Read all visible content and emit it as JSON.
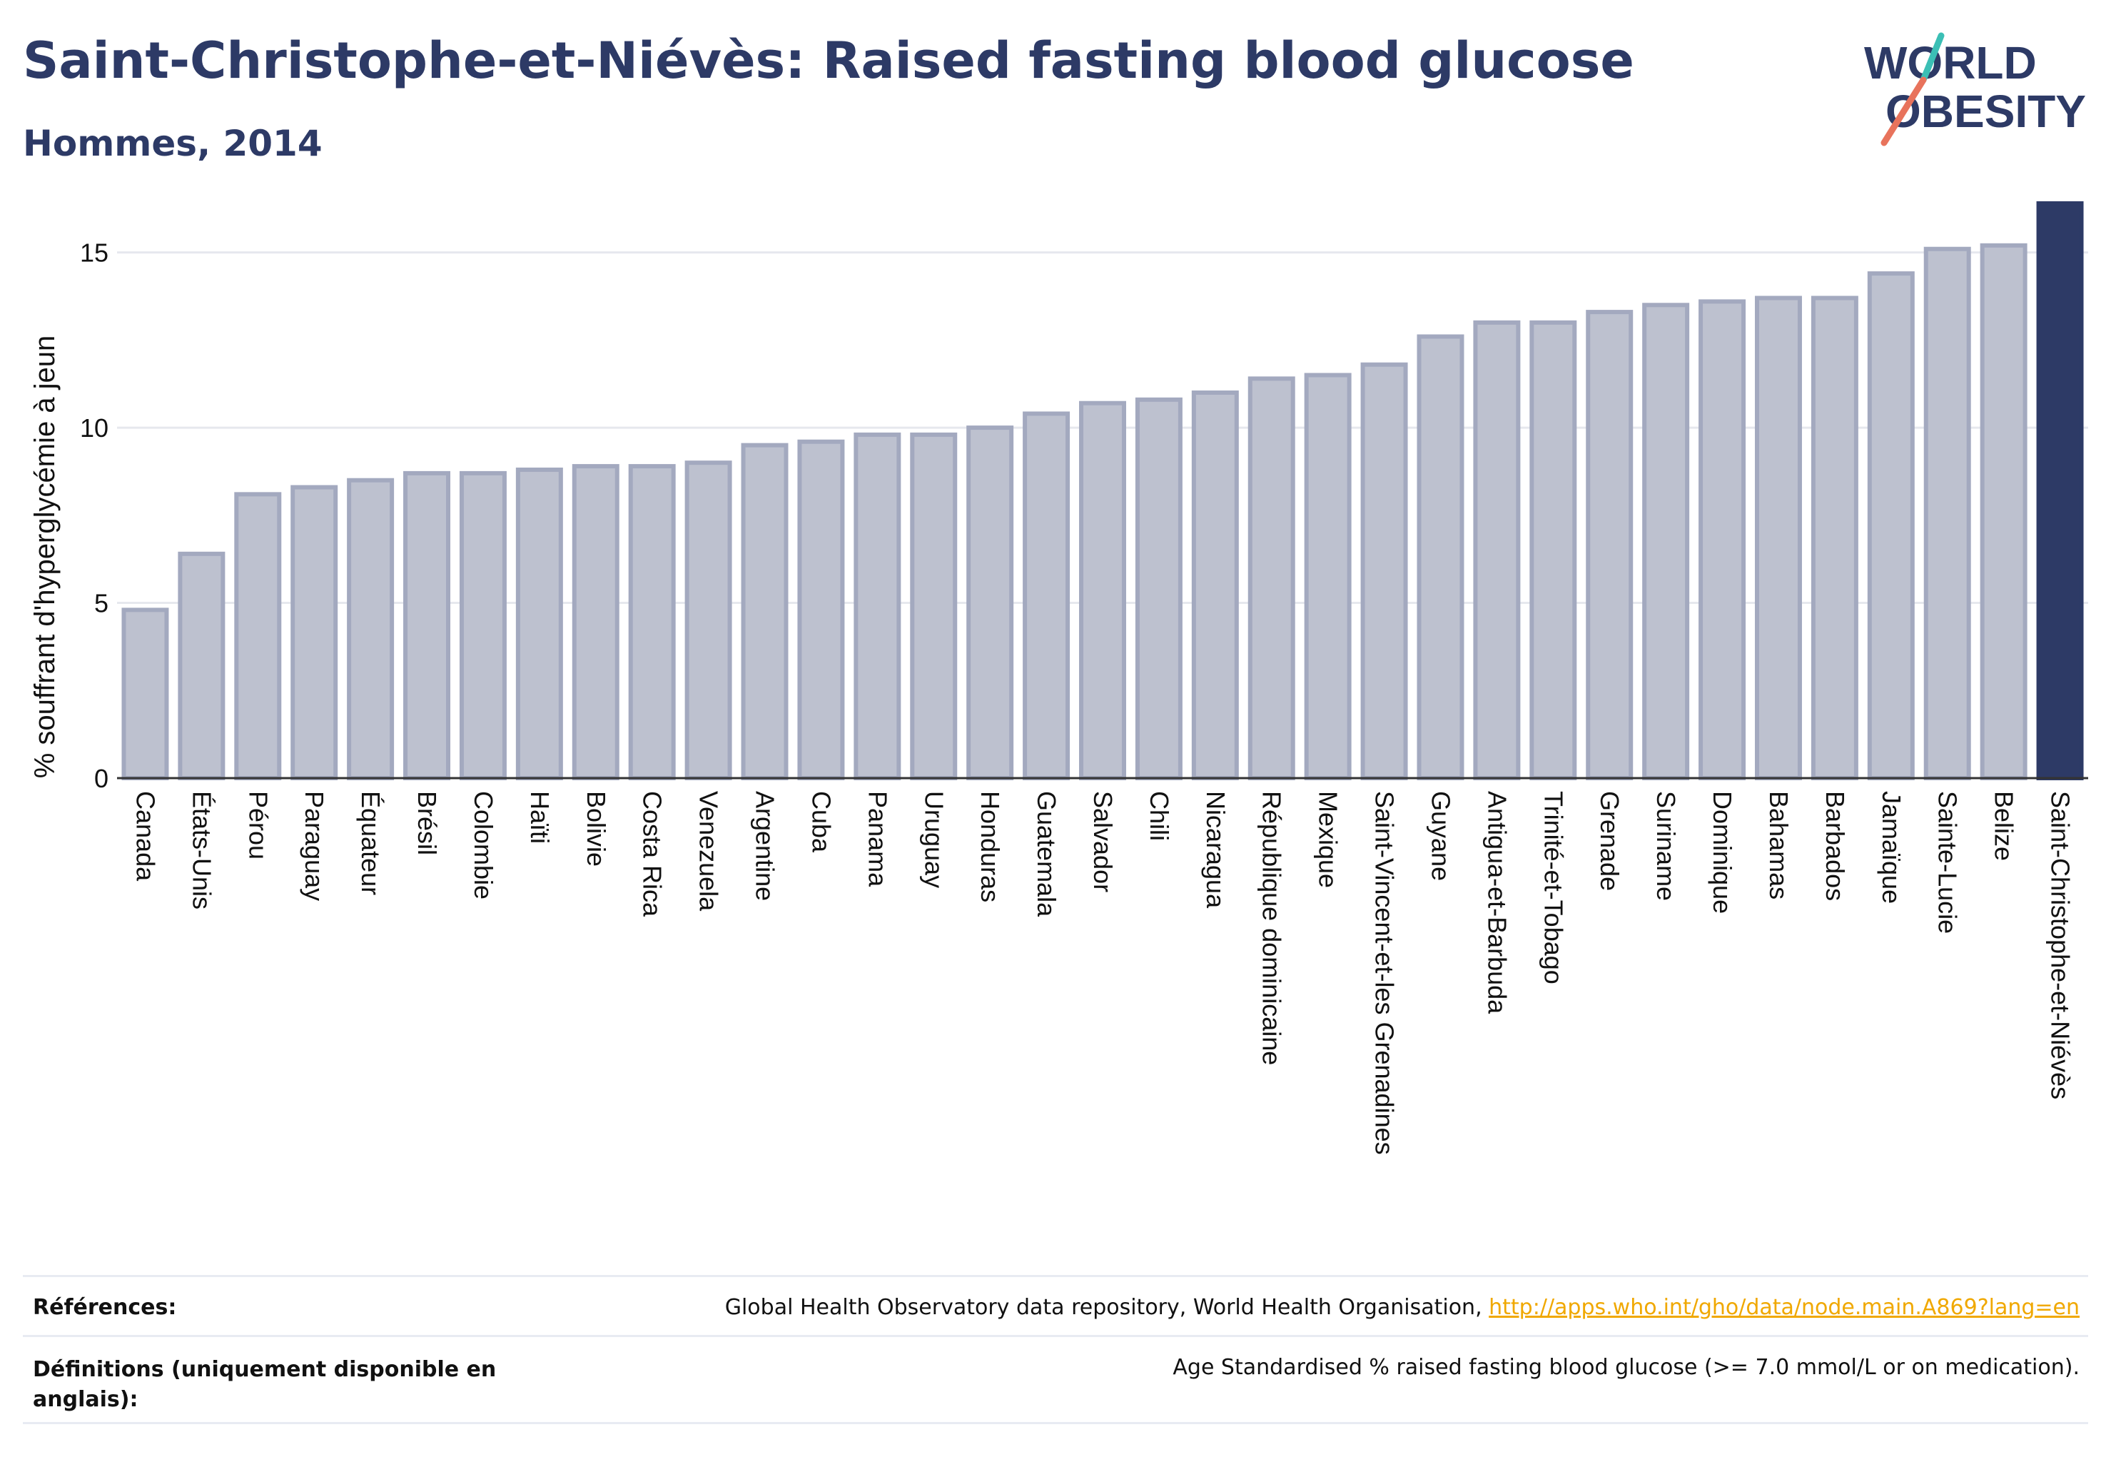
{
  "header": {
    "title": "Saint-Christophe-et-Niévès: Raised fasting blood glucose",
    "subtitle": "Hommes, 2014"
  },
  "logo": {
    "line1": "WORLD",
    "line2": "OBESITY"
  },
  "chart_data": {
    "type": "bar",
    "ylabel": "% souffrant d'hyperglycémie à jeun",
    "ylim": [
      0,
      16.5
    ],
    "yticks": [
      0,
      5,
      10,
      15
    ],
    "grid": true,
    "highlight": "Saint-Christophe-et-Niévès",
    "categories": [
      "Canada",
      "États-Unis",
      "Pérou",
      "Paraguay",
      "Équateur",
      "Brésil",
      "Colombie",
      "Haïti",
      "Bolivie",
      "Costa Rica",
      "Venezuela",
      "Argentine",
      "Cuba",
      "Panama",
      "Uruguay",
      "Honduras",
      "Guatemala",
      "Salvador",
      "Chili",
      "Nicaragua",
      "République dominicaine",
      "Mexique",
      "Saint-Vincent-et-les Grenadines",
      "Guyane",
      "Antigua-et-Barbuda",
      "Trinité-et-Tobago",
      "Grenade",
      "Suriname",
      "Dominique",
      "Bahamas",
      "Barbados",
      "Jamaïque",
      "Sainte-Lucie",
      "Belize",
      "Saint-Christophe-et-Niévès"
    ],
    "values": [
      4.8,
      6.4,
      8.1,
      8.3,
      8.5,
      8.7,
      8.7,
      8.8,
      8.9,
      8.9,
      9.0,
      9.5,
      9.6,
      9.8,
      9.8,
      10.0,
      10.4,
      10.7,
      10.8,
      11.0,
      11.4,
      11.5,
      11.8,
      12.6,
      13.0,
      13.0,
      13.3,
      13.5,
      13.6,
      13.7,
      13.7,
      14.4,
      15.1,
      15.2,
      16.4
    ]
  },
  "colors": {
    "bar": "#bdc1cf",
    "bar_border": "#a3a9bf",
    "highlight": "#2d3a66",
    "grid": "#e6e8ee",
    "link": "#f0a800"
  },
  "footer": {
    "references_label": "Références:",
    "references_text": "Global Health Observatory data repository, World Health Organisation, ",
    "references_link": "http://apps.who.int/gho/data/node.main.A869?lang=en",
    "definitions_label": "Définitions (uniquement disponible en anglais):",
    "definitions_text": "Age Standardised % raised fasting blood glucose (>= 7.0 mmol/L or on medication)."
  }
}
